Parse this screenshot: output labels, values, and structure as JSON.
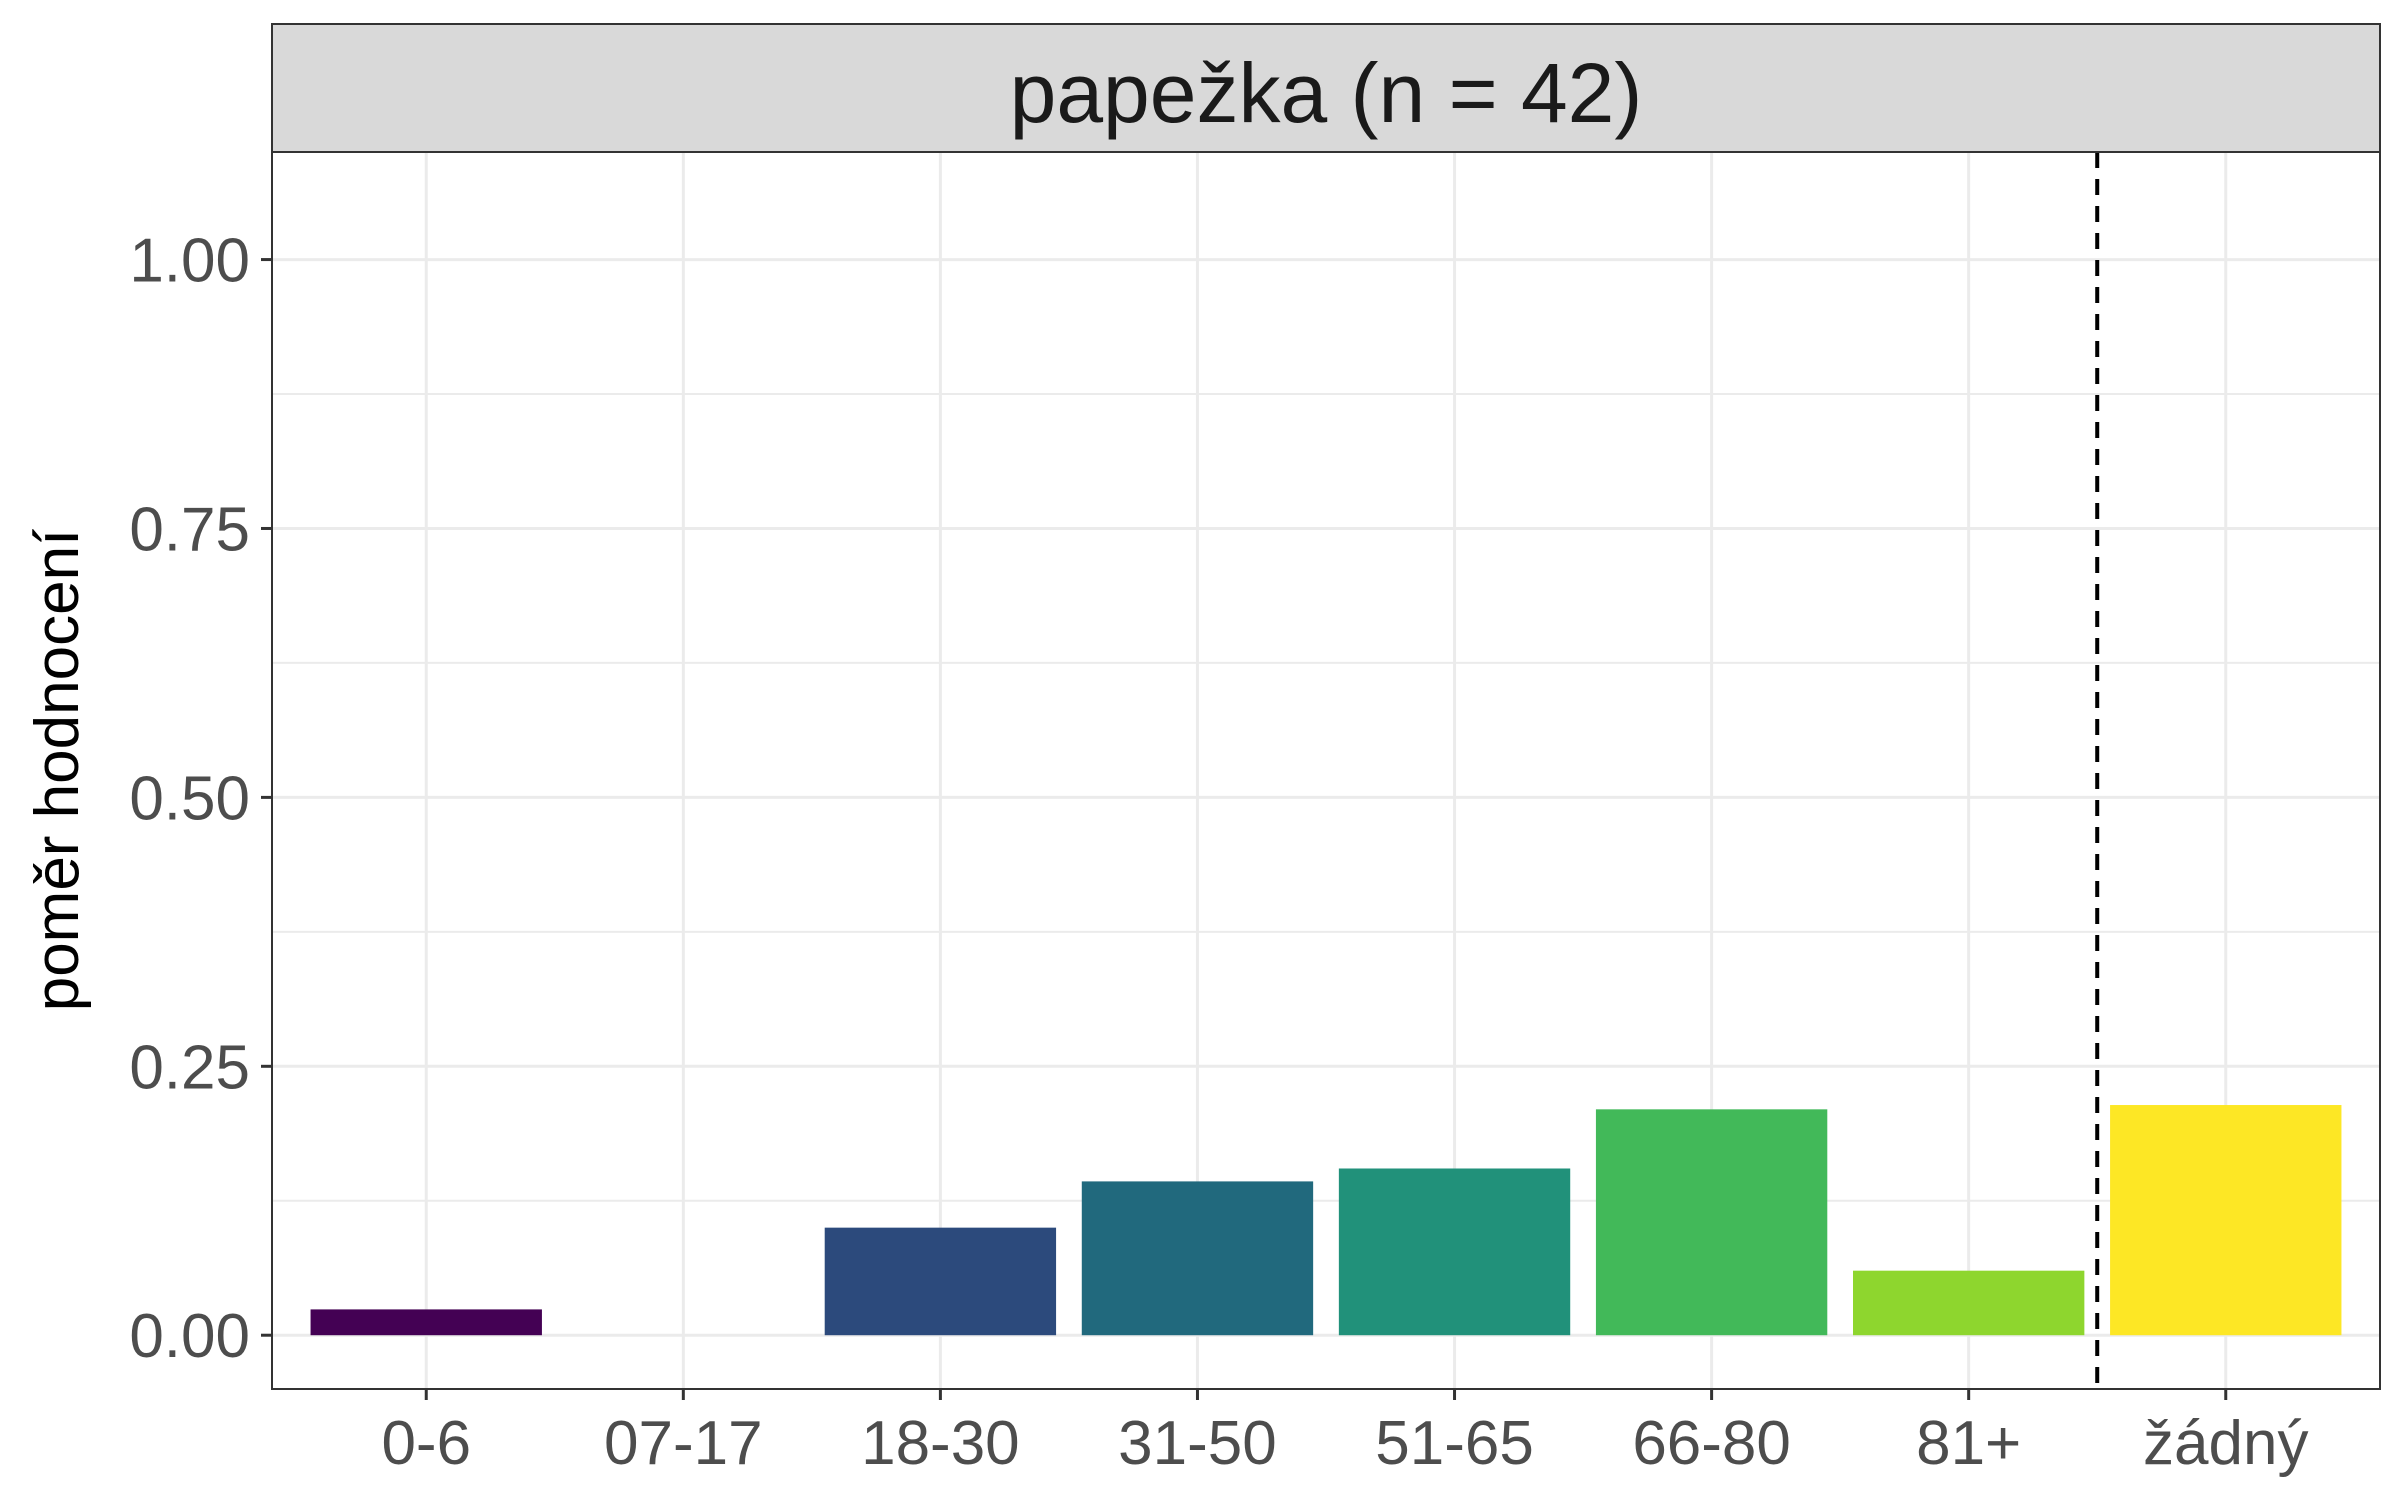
{
  "strip": {
    "title": "papežka (n = 42)"
  },
  "chart_data": {
    "type": "bar",
    "title": "papežka (n = 42)",
    "xlabel": "",
    "ylabel": "poměr hodnocení",
    "categories": [
      "0-6",
      "07-17",
      "18-30",
      "31-50",
      "51-65",
      "66-80",
      "81+",
      "žádný"
    ],
    "values": [
      0.024,
      0.0,
      0.1,
      0.143,
      0.155,
      0.21,
      0.06,
      0.214
    ],
    "colors": [
      "#440154",
      "#46337e",
      "#2c4a7c",
      "#21697d",
      "#21917a",
      "#42b959",
      "#8ed62e",
      "#fde725"
    ],
    "ylim": [
      -0.05,
      1.1
    ],
    "yticks": [
      0.0,
      0.25,
      0.5,
      0.75,
      1.0
    ],
    "ytick_labels": [
      "0.00",
      "0.25",
      "0.50",
      "0.75",
      "1.00"
    ],
    "grid": true,
    "separator_after_category": "81+",
    "separator_style": "dashed"
  }
}
